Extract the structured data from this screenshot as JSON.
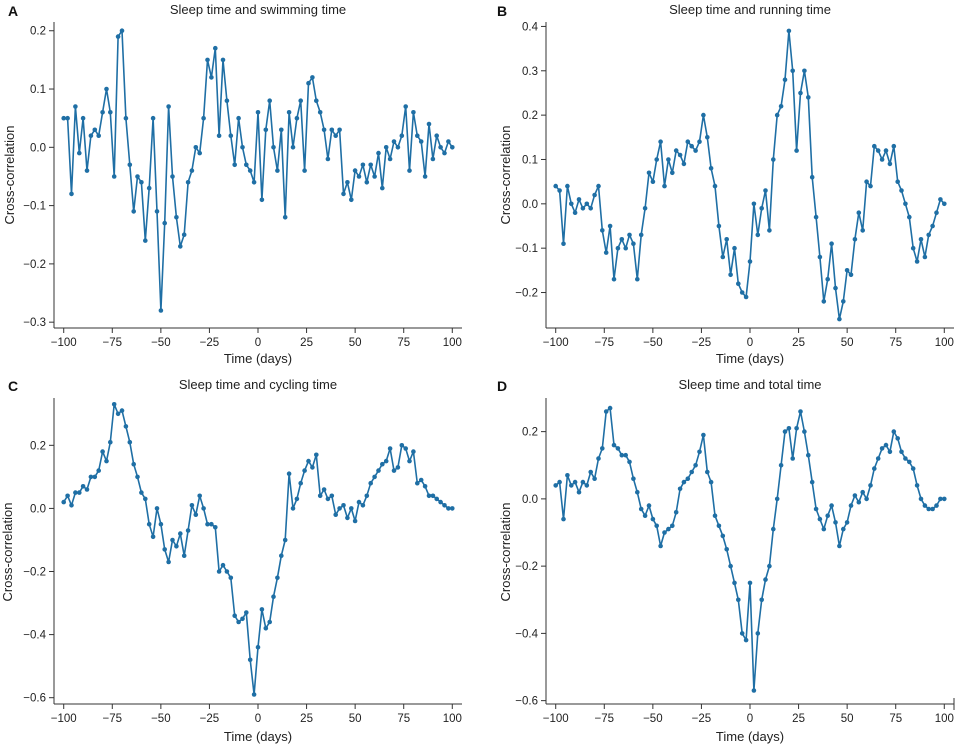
{
  "figure": {
    "background": "#ffffff",
    "series_color": "#1f6fa5"
  },
  "chart_data": [
    {
      "panel_label": "A",
      "type": "line",
      "title": "Sleep time and swimming time",
      "xlabel": "Time (days)",
      "ylabel": "Cross-correlation",
      "xlim": [
        -105,
        105
      ],
      "ylim": [
        -0.31,
        0.215
      ],
      "xticks": [
        -100,
        -75,
        -50,
        -25,
        0,
        25,
        50,
        75,
        100
      ],
      "xtick_labels": [
        "−100",
        "−75",
        "−50",
        "−25",
        "0",
        "25",
        "50",
        "75",
        "100"
      ],
      "yticks": [
        -0.3,
        -0.2,
        -0.1,
        0.0,
        0.1,
        0.2
      ],
      "ytick_labels": [
        "−0.3",
        "−0.2",
        "−0.1",
        "0.0",
        "0.1",
        "0.2"
      ],
      "x": [
        -100,
        -98,
        -96,
        -94,
        -92,
        -90,
        -88,
        -86,
        -84,
        -82,
        -80,
        -78,
        -76,
        -74,
        -72,
        -70,
        -68,
        -66,
        -64,
        -62,
        -60,
        -58,
        -56,
        -54,
        -52,
        -50,
        -48,
        -46,
        -44,
        -42,
        -40,
        -38,
        -36,
        -34,
        -32,
        -30,
        -28,
        -26,
        -24,
        -22,
        -20,
        -18,
        -16,
        -14,
        -12,
        -10,
        -8,
        -6,
        -4,
        -2,
        0,
        2,
        4,
        6,
        8,
        10,
        12,
        14,
        16,
        18,
        20,
        22,
        24,
        26,
        28,
        30,
        32,
        34,
        36,
        38,
        40,
        42,
        44,
        46,
        48,
        50,
        52,
        54,
        56,
        58,
        60,
        62,
        64,
        66,
        68,
        70,
        72,
        74,
        76,
        78,
        80,
        82,
        84,
        86,
        88,
        90,
        92,
        94,
        96,
        98,
        100
      ],
      "values": [
        0.05,
        0.05,
        -0.08,
        0.07,
        -0.01,
        0.05,
        -0.04,
        0.02,
        0.03,
        0.02,
        0.06,
        0.1,
        0.06,
        -0.05,
        0.19,
        0.2,
        0.05,
        -0.03,
        -0.11,
        -0.05,
        -0.06,
        -0.16,
        -0.07,
        0.05,
        -0.11,
        -0.28,
        -0.13,
        0.07,
        -0.05,
        -0.12,
        -0.17,
        -0.15,
        -0.06,
        -0.04,
        0.0,
        -0.01,
        0.05,
        0.15,
        0.12,
        0.17,
        0.02,
        0.15,
        0.08,
        0.02,
        -0.03,
        0.05,
        0.0,
        -0.03,
        -0.04,
        -0.06,
        0.06,
        -0.09,
        0.03,
        0.08,
        0.0,
        -0.04,
        0.03,
        -0.12,
        0.06,
        0.0,
        0.05,
        0.08,
        -0.04,
        0.11,
        0.12,
        0.08,
        0.06,
        0.03,
        -0.02,
        0.03,
        0.02,
        0.03,
        -0.08,
        -0.06,
        -0.09,
        -0.04,
        -0.05,
        -0.03,
        -0.06,
        -0.03,
        -0.05,
        -0.01,
        -0.07,
        0.0,
        -0.02,
        0.01,
        0.0,
        0.02,
        0.07,
        -0.04,
        0.06,
        0.02,
        0.01,
        -0.05,
        0.04,
        -0.02,
        0.02,
        0.0,
        -0.01,
        0.01,
        0.0
      ]
    },
    {
      "panel_label": "B",
      "type": "line",
      "title": "Sleep time and running time",
      "xlabel": "Time (days)",
      "ylabel": "Cross-correlation",
      "xlim": [
        -105,
        105
      ],
      "ylim": [
        -0.28,
        0.41
      ],
      "xticks": [
        -100,
        -75,
        -50,
        -25,
        0,
        25,
        50,
        75,
        100
      ],
      "xtick_labels": [
        "−100",
        "−75",
        "−50",
        "−25",
        "0",
        "25",
        "50",
        "75",
        "100"
      ],
      "yticks": [
        -0.2,
        -0.1,
        0.0,
        0.1,
        0.2,
        0.3,
        0.4
      ],
      "ytick_labels": [
        "−0.2",
        "−0.1",
        "0.0",
        "0.1",
        "0.2",
        "0.3",
        "0.4"
      ],
      "x": [
        -100,
        -98,
        -96,
        -94,
        -92,
        -90,
        -88,
        -86,
        -84,
        -82,
        -80,
        -78,
        -76,
        -74,
        -72,
        -70,
        -68,
        -66,
        -64,
        -62,
        -60,
        -58,
        -56,
        -54,
        -52,
        -50,
        -48,
        -46,
        -44,
        -42,
        -40,
        -38,
        -36,
        -34,
        -32,
        -30,
        -28,
        -26,
        -24,
        -22,
        -20,
        -18,
        -16,
        -14,
        -12,
        -10,
        -8,
        -6,
        -4,
        -2,
        0,
        2,
        4,
        6,
        8,
        10,
        12,
        14,
        16,
        18,
        20,
        22,
        24,
        26,
        28,
        30,
        32,
        34,
        36,
        38,
        40,
        42,
        44,
        46,
        48,
        50,
        52,
        54,
        56,
        58,
        60,
        62,
        64,
        66,
        68,
        70,
        72,
        74,
        76,
        78,
        80,
        82,
        84,
        86,
        88,
        90,
        92,
        94,
        96,
        98,
        100
      ],
      "values": [
        0.04,
        0.03,
        -0.09,
        0.04,
        0.0,
        -0.02,
        0.01,
        -0.01,
        0.0,
        -0.01,
        0.02,
        0.04,
        -0.06,
        -0.11,
        -0.05,
        -0.17,
        -0.1,
        -0.08,
        -0.1,
        -0.07,
        -0.09,
        -0.17,
        -0.07,
        -0.01,
        0.07,
        0.05,
        0.1,
        0.14,
        0.04,
        0.1,
        0.07,
        0.12,
        0.11,
        0.09,
        0.14,
        0.13,
        0.12,
        0.14,
        0.2,
        0.15,
        0.08,
        0.04,
        -0.05,
        -0.12,
        -0.08,
        -0.16,
        -0.1,
        -0.18,
        -0.2,
        -0.21,
        -0.13,
        0.0,
        -0.07,
        -0.01,
        0.03,
        -0.06,
        0.1,
        0.2,
        0.22,
        0.28,
        0.39,
        0.3,
        0.12,
        0.25,
        0.3,
        0.24,
        0.06,
        -0.03,
        -0.12,
        -0.22,
        -0.17,
        -0.09,
        -0.19,
        -0.26,
        -0.22,
        -0.15,
        -0.16,
        -0.08,
        -0.02,
        -0.06,
        0.05,
        0.04,
        0.13,
        0.12,
        0.1,
        0.12,
        0.09,
        0.13,
        0.05,
        0.03,
        0.0,
        -0.03,
        -0.1,
        -0.13,
        -0.08,
        -0.12,
        -0.07,
        -0.05,
        -0.02,
        0.01,
        0.0
      ]
    },
    {
      "panel_label": "C",
      "type": "line",
      "title": "Sleep time and cycling time",
      "xlabel": "Time (days)",
      "ylabel": "Cross-correlation",
      "xlim": [
        -105,
        105
      ],
      "ylim": [
        -0.62,
        0.35
      ],
      "xticks": [
        -100,
        -75,
        -50,
        -25,
        0,
        25,
        50,
        75,
        100
      ],
      "xtick_labels": [
        "−100",
        "−75",
        "−50",
        "−25",
        "0",
        "25",
        "50",
        "75",
        "100"
      ],
      "yticks": [
        -0.6,
        -0.4,
        -0.2,
        0.0,
        0.2
      ],
      "ytick_labels": [
        "−0.6",
        "−0.4",
        "−0.2",
        "0.0",
        "0.2"
      ],
      "x": [
        -100,
        -98,
        -96,
        -94,
        -92,
        -90,
        -88,
        -86,
        -84,
        -82,
        -80,
        -78,
        -76,
        -74,
        -72,
        -70,
        -68,
        -66,
        -64,
        -62,
        -60,
        -58,
        -56,
        -54,
        -52,
        -50,
        -48,
        -46,
        -44,
        -42,
        -40,
        -38,
        -36,
        -34,
        -32,
        -30,
        -28,
        -26,
        -24,
        -22,
        -20,
        -18,
        -16,
        -14,
        -12,
        -10,
        -8,
        -6,
        -4,
        -2,
        0,
        2,
        4,
        6,
        8,
        10,
        12,
        14,
        16,
        18,
        20,
        22,
        24,
        26,
        28,
        30,
        32,
        34,
        36,
        38,
        40,
        42,
        44,
        46,
        48,
        50,
        52,
        54,
        56,
        58,
        60,
        62,
        64,
        66,
        68,
        70,
        72,
        74,
        76,
        78,
        80,
        82,
        84,
        86,
        88,
        90,
        92,
        94,
        96,
        98,
        100
      ],
      "values": [
        0.02,
        0.04,
        0.01,
        0.05,
        0.05,
        0.07,
        0.06,
        0.1,
        0.1,
        0.12,
        0.18,
        0.15,
        0.21,
        0.33,
        0.3,
        0.31,
        0.26,
        0.21,
        0.14,
        0.1,
        0.05,
        0.03,
        -0.05,
        -0.09,
        0.0,
        -0.05,
        -0.13,
        -0.17,
        -0.1,
        -0.12,
        -0.08,
        -0.15,
        -0.07,
        0.01,
        -0.02,
        0.04,
        0.0,
        -0.05,
        -0.05,
        -0.06,
        -0.2,
        -0.18,
        -0.2,
        -0.22,
        -0.34,
        -0.36,
        -0.35,
        -0.33,
        -0.48,
        -0.59,
        -0.44,
        -0.32,
        -0.38,
        -0.36,
        -0.28,
        -0.22,
        -0.15,
        -0.1,
        0.11,
        0.0,
        0.03,
        0.08,
        0.12,
        0.15,
        0.13,
        0.17,
        0.04,
        0.06,
        0.03,
        0.04,
        -0.02,
        0.0,
        0.01,
        -0.03,
        0.0,
        -0.04,
        0.02,
        0.01,
        0.04,
        0.08,
        0.1,
        0.12,
        0.14,
        0.15,
        0.19,
        0.12,
        0.13,
        0.2,
        0.19,
        0.15,
        0.18,
        0.08,
        0.09,
        0.07,
        0.04,
        0.04,
        0.03,
        0.02,
        0.01,
        0.0,
        0.0
      ]
    },
    {
      "panel_label": "D",
      "type": "line",
      "title": "Sleep time and total time",
      "xlabel": "Time (days)",
      "ylabel": "Cross-correlation",
      "xlim": [
        -105,
        105
      ],
      "ylim": [
        -0.61,
        0.3
      ],
      "xticks": [
        -100,
        -75,
        -50,
        -25,
        0,
        25,
        50,
        75,
        100
      ],
      "xtick_labels": [
        "−100",
        "−75",
        "−50",
        "−25",
        "0",
        "25",
        "50",
        "75",
        "100"
      ],
      "yticks": [
        -0.6,
        -0.4,
        -0.2,
        0.0,
        0.2
      ],
      "ytick_labels": [
        "−0.6",
        "−0.4",
        "−0.2",
        "0.0",
        "0.2"
      ],
      "x": [
        -100,
        -98,
        -96,
        -94,
        -92,
        -90,
        -88,
        -86,
        -84,
        -82,
        -80,
        -78,
        -76,
        -74,
        -72,
        -70,
        -68,
        -66,
        -64,
        -62,
        -60,
        -58,
        -56,
        -54,
        -52,
        -50,
        -48,
        -46,
        -44,
        -42,
        -40,
        -38,
        -36,
        -34,
        -32,
        -30,
        -28,
        -26,
        -24,
        -22,
        -20,
        -18,
        -16,
        -14,
        -12,
        -10,
        -8,
        -6,
        -4,
        -2,
        0,
        2,
        4,
        6,
        8,
        10,
        12,
        14,
        16,
        18,
        20,
        22,
        24,
        26,
        28,
        30,
        32,
        34,
        36,
        38,
        40,
        42,
        44,
        46,
        48,
        50,
        52,
        54,
        56,
        58,
        60,
        62,
        64,
        66,
        68,
        70,
        72,
        74,
        76,
        78,
        80,
        82,
        84,
        86,
        88,
        90,
        92,
        94,
        96,
        98,
        100
      ],
      "values": [
        0.04,
        0.05,
        -0.06,
        0.07,
        0.04,
        0.05,
        0.02,
        0.05,
        0.04,
        0.08,
        0.06,
        0.12,
        0.15,
        0.26,
        0.27,
        0.16,
        0.15,
        0.13,
        0.13,
        0.11,
        0.06,
        0.02,
        -0.03,
        -0.05,
        -0.02,
        -0.06,
        -0.08,
        -0.14,
        -0.1,
        -0.09,
        -0.08,
        -0.04,
        0.03,
        0.05,
        0.06,
        0.08,
        0.1,
        0.14,
        0.19,
        0.08,
        0.05,
        -0.05,
        -0.08,
        -0.11,
        -0.15,
        -0.2,
        -0.25,
        -0.3,
        -0.4,
        -0.42,
        -0.25,
        -0.57,
        -0.4,
        -0.3,
        -0.24,
        -0.2,
        -0.09,
        0.0,
        0.1,
        0.2,
        0.21,
        0.12,
        0.21,
        0.26,
        0.2,
        0.13,
        0.05,
        -0.03,
        -0.06,
        -0.09,
        -0.05,
        -0.02,
        -0.07,
        -0.14,
        -0.09,
        -0.07,
        -0.02,
        0.01,
        -0.01,
        0.02,
        0.0,
        0.04,
        0.09,
        0.12,
        0.15,
        0.16,
        0.14,
        0.2,
        0.18,
        0.14,
        0.12,
        0.11,
        0.09,
        0.04,
        0.0,
        -0.02,
        -0.03,
        -0.03,
        -0.02,
        0.0,
        0.0
      ]
    }
  ]
}
